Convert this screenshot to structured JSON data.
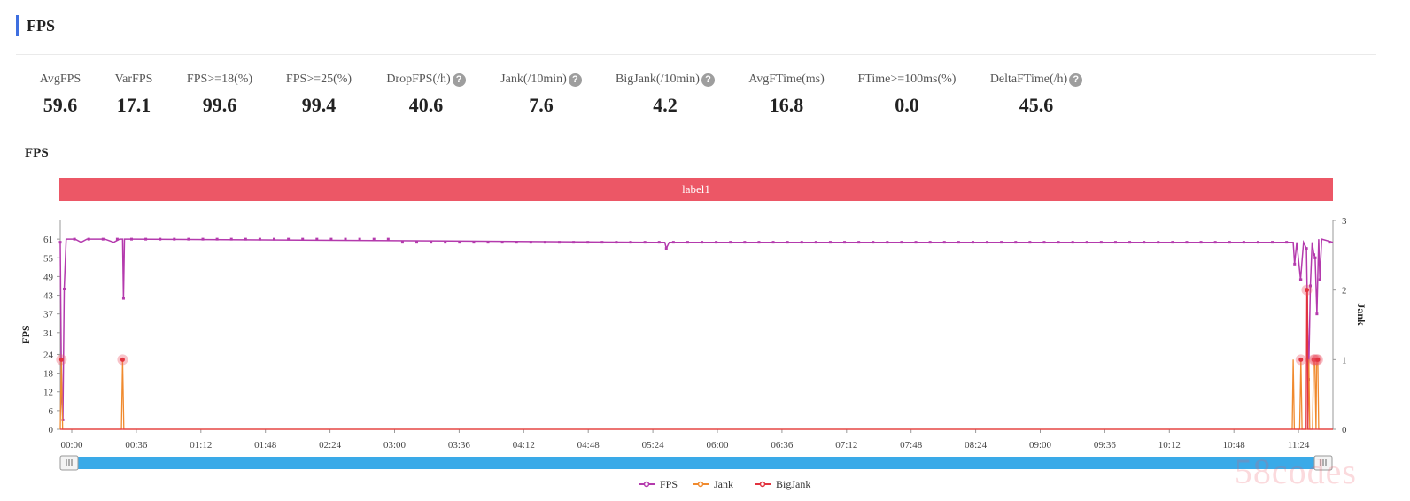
{
  "section": {
    "title": "FPS"
  },
  "metrics": [
    {
      "label": "AvgFPS",
      "value": "59.6",
      "help": false
    },
    {
      "label": "VarFPS",
      "value": "17.1",
      "help": false
    },
    {
      "label": "FPS>=18(%)",
      "value": "99.6",
      "help": false
    },
    {
      "label": "FPS>=25(%)",
      "value": "99.4",
      "help": false
    },
    {
      "label": "DropFPS(/h)",
      "value": "40.6",
      "help": true
    },
    {
      "label": "Jank(/10min)",
      "value": "7.6",
      "help": true
    },
    {
      "label": "BigJank(/10min)",
      "value": "4.2",
      "help": true
    },
    {
      "label": "AvgFTime(ms)",
      "value": "16.8",
      "help": false
    },
    {
      "label": "FTime>=100ms(%)",
      "value": "0.0",
      "help": false
    },
    {
      "label": "DeltaFTime(/h)",
      "value": "45.6",
      "help": true
    }
  ],
  "help_glyph": "?",
  "watermark": "58codes",
  "chart_data": {
    "type": "line",
    "title": "FPS",
    "band_label": "label1",
    "xlabel": "",
    "ylabel": "FPS",
    "y2label": "Jank",
    "x_ticks": [
      "00:00",
      "00:36",
      "01:12",
      "01:48",
      "02:24",
      "03:00",
      "03:36",
      "04:12",
      "04:48",
      "05:24",
      "06:00",
      "06:36",
      "07:12",
      "07:48",
      "08:24",
      "09:00",
      "09:36",
      "10:12",
      "10:48",
      "11:24"
    ],
    "y_ticks": [
      0,
      6,
      12,
      18,
      24,
      31,
      37,
      43,
      49,
      55,
      61
    ],
    "y2_ticks": [
      0,
      1,
      2,
      3
    ],
    "ylim": [
      0,
      67
    ],
    "y2lim": [
      0,
      3
    ],
    "xlim_seconds": [
      0,
      42840
    ],
    "colors": {
      "FPS": "#b43aad",
      "Jank": "#f08a2e",
      "BigJank": "#e2333f"
    },
    "series": [
      {
        "name": "FPS",
        "axis": "left",
        "points": [
          [
            0,
            60
          ],
          [
            45,
            10
          ],
          [
            90,
            3
          ],
          [
            135,
            45
          ],
          [
            200,
            61
          ],
          [
            500,
            61
          ],
          [
            700,
            60
          ],
          [
            900,
            61
          ],
          [
            1200,
            61
          ],
          [
            1500,
            61
          ],
          [
            1800,
            60
          ],
          [
            2000,
            61
          ],
          [
            2100,
            61
          ],
          [
            2130,
            42
          ],
          [
            2160,
            61
          ],
          [
            2400,
            61
          ],
          [
            20000,
            60
          ],
          [
            20350,
            60
          ],
          [
            20400,
            58
          ],
          [
            20450,
            59
          ],
          [
            20500,
            60
          ],
          [
            41500,
            60
          ],
          [
            41550,
            53
          ],
          [
            41620,
            60
          ],
          [
            41750,
            48
          ],
          [
            41850,
            60
          ],
          [
            41950,
            58
          ],
          [
            42020,
            16
          ],
          [
            42080,
            46
          ],
          [
            42140,
            60
          ],
          [
            42200,
            56
          ],
          [
            42240,
            55
          ],
          [
            42300,
            37
          ],
          [
            42360,
            61
          ],
          [
            42400,
            48
          ],
          [
            42460,
            61
          ],
          [
            42840,
            60
          ]
        ]
      },
      {
        "name": "Jank",
        "axis": "right",
        "points": [
          [
            0,
            0
          ],
          [
            40,
            1
          ],
          [
            80,
            0
          ],
          [
            2060,
            0
          ],
          [
            2100,
            1
          ],
          [
            2140,
            0
          ],
          [
            41470,
            0
          ],
          [
            41500,
            1
          ],
          [
            41540,
            0
          ],
          [
            41720,
            0
          ],
          [
            41760,
            1
          ],
          [
            41800,
            0
          ],
          [
            42000,
            0
          ],
          [
            42030,
            1
          ],
          [
            42060,
            0
          ],
          [
            42150,
            0
          ],
          [
            42190,
            1
          ],
          [
            42230,
            1
          ],
          [
            42270,
            0
          ],
          [
            42290,
            1
          ],
          [
            42330,
            1
          ],
          [
            42360,
            0
          ],
          [
            42840,
            0
          ]
        ],
        "markers": [
          [
            40,
            1
          ],
          [
            2100,
            1
          ],
          [
            41760,
            1
          ],
          [
            42190,
            1
          ],
          [
            42230,
            1
          ],
          [
            42290,
            1
          ],
          [
            42330,
            1
          ]
        ]
      },
      {
        "name": "BigJank",
        "axis": "right",
        "points": [
          [
            0,
            0
          ],
          [
            41940,
            0
          ],
          [
            41960,
            2
          ],
          [
            41980,
            2
          ],
          [
            42000,
            0
          ],
          [
            42840,
            0
          ]
        ],
        "markers": [
          [
            41960,
            2
          ]
        ]
      }
    ],
    "legend": [
      "FPS",
      "Jank",
      "BigJank"
    ],
    "legend_position": "bottom-center",
    "grid": false
  }
}
